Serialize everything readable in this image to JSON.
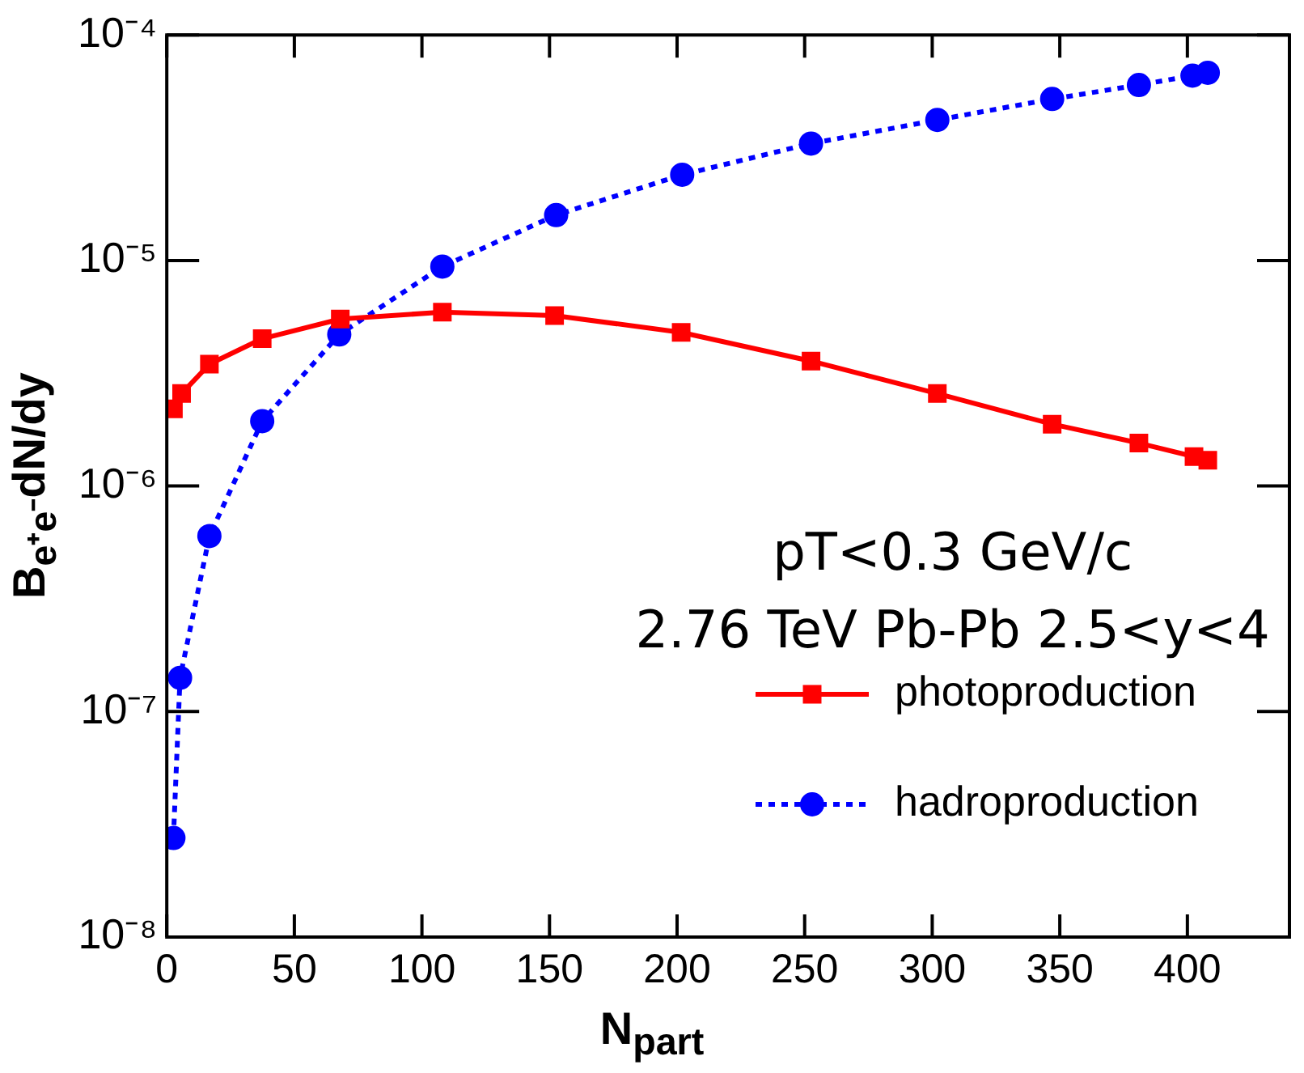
{
  "chart_data": {
    "type": "line",
    "xlabel": "N$_{part}$",
    "ylabel": "B$_{e⁺e⁻}$dN/dy",
    "annotations": [
      "pT<0.3 GeV/c",
      "2.76 TeV Pb-Pb 2.5<y<4"
    ],
    "log": "y",
    "legend": "bottom right",
    "grid": false,
    "xlim": [
      0,
      440
    ],
    "xticks": [
      0,
      50,
      100,
      150,
      200,
      250,
      300,
      350,
      400
    ],
    "ylim": [
      1e-08,
      0.0001
    ],
    "yticks": [
      {
        "value": 1e-08,
        "label": "10⁻⁸"
      },
      {
        "value": 1e-07,
        "label": "10⁻⁷"
      },
      {
        "value": 1e-06,
        "label": "10⁻⁶"
      },
      {
        "value": 1e-05,
        "label": "10⁻⁵"
      },
      {
        "value": 0.0001,
        "label": "10⁻⁴"
      }
    ],
    "series": [
      {
        "name": "photoproduction",
        "color": "#ff0000",
        "marker": "square",
        "line_style": "solid",
        "x": [
          2.6,
          5.8,
          16.7,
          37.4,
          68,
          108,
          152,
          201.6,
          252.5,
          302,
          347,
          381,
          402.6,
          408
        ],
        "values": [
          2.2e-06,
          2.57e-06,
          3.47e-06,
          4.5e-06,
          5.5e-06,
          5.9e-06,
          5.7e-06,
          4.8e-06,
          3.58e-06,
          2.57e-06,
          1.88e-06,
          1.55e-06,
          1.35e-06,
          1.3e-06
        ]
      },
      {
        "name": "hadroproduction",
        "color": "#0000ff",
        "marker": "circle",
        "line_style": "dotted",
        "x": [
          2.6,
          5.2,
          16.7,
          37.4,
          67.6,
          108,
          152.6,
          202,
          252.5,
          302,
          347,
          381,
          402,
          408
        ],
        "values": [
          2.75e-08,
          1.41e-07,
          6e-07,
          1.94e-06,
          4.7e-06,
          9.4e-06,
          1.59e-05,
          2.4e-05,
          3.3e-05,
          4.2e-05,
          5.2e-05,
          6e-05,
          6.6e-05,
          6.8e-05
        ]
      }
    ]
  }
}
